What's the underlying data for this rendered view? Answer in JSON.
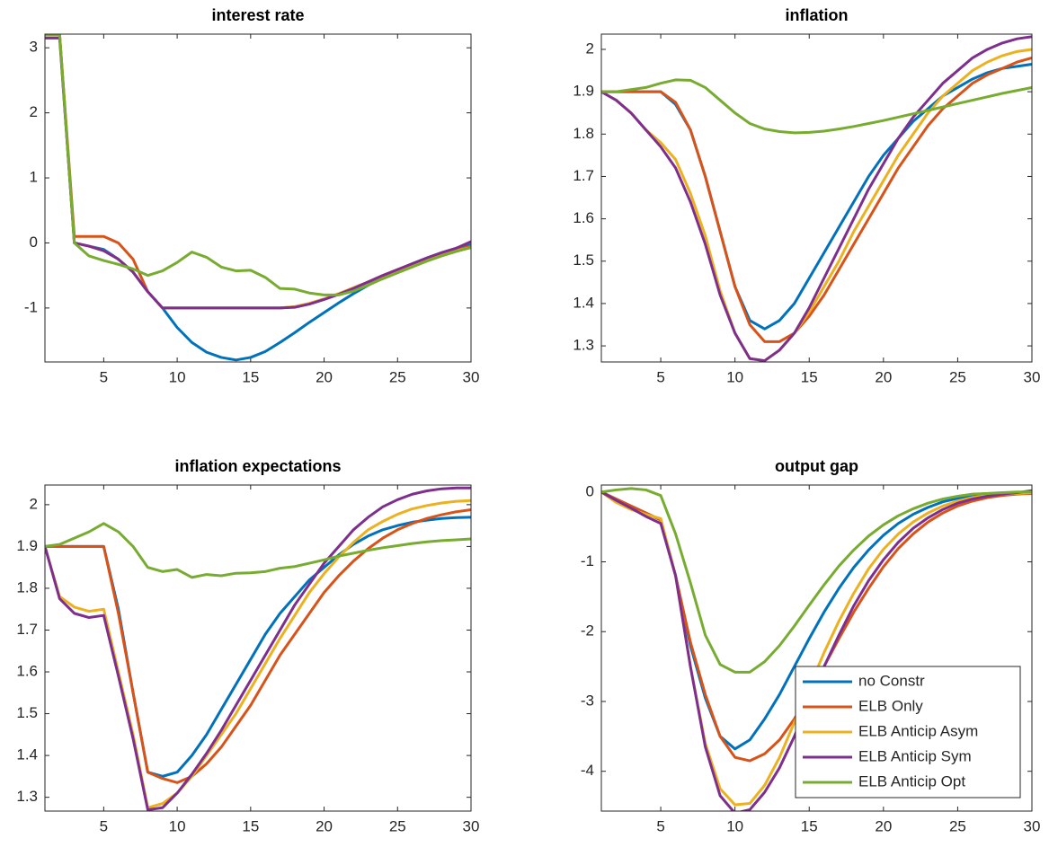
{
  "chart_data": [
    {
      "type": "line",
      "title": "interest rate",
      "x": [
        1,
        2,
        3,
        4,
        5,
        6,
        7,
        8,
        9,
        10,
        11,
        12,
        13,
        14,
        15,
        16,
        17,
        18,
        19,
        20,
        21,
        22,
        23,
        24,
        25,
        26,
        27,
        28,
        29,
        30
      ],
      "xlim": [
        1,
        30
      ],
      "xticks": [
        5,
        10,
        15,
        20,
        25,
        30
      ],
      "ylim": [
        -1.83,
        3.21
      ],
      "yticks": [
        -1,
        0,
        1,
        2,
        3
      ],
      "series": [
        {
          "color": "#0072BD",
          "values": [
            3.2,
            3.2,
            0.0,
            -0.05,
            -0.1,
            -0.25,
            -0.45,
            -0.75,
            -1.0,
            -1.3,
            -1.53,
            -1.68,
            -1.76,
            -1.8,
            -1.76,
            -1.67,
            -1.53,
            -1.38,
            -1.22,
            -1.07,
            -0.92,
            -0.78,
            -0.65,
            -0.53,
            -0.42,
            -0.32,
            -0.23,
            -0.15,
            -0.08,
            -0.03
          ]
        },
        {
          "color": "#D95319",
          "values": [
            3.2,
            3.2,
            0.1,
            0.1,
            0.1,
            0.0,
            -0.25,
            -0.75,
            -1.0,
            -1.0,
            -1.0,
            -1.0,
            -1.0,
            -1.0,
            -1.0,
            -1.0,
            -1.0,
            -0.98,
            -0.93,
            -0.86,
            -0.78,
            -0.69,
            -0.6,
            -0.5,
            -0.41,
            -0.32,
            -0.24,
            -0.17,
            -0.11,
            -0.05
          ]
        },
        {
          "color": "#EDB120",
          "values": [
            3.2,
            3.2,
            0.0,
            -0.05,
            -0.12,
            -0.25,
            -0.45,
            -0.75,
            -1.0,
            -1.0,
            -1.0,
            -1.0,
            -1.0,
            -1.0,
            -1.0,
            -1.0,
            -1.0,
            -0.98,
            -0.93,
            -0.86,
            -0.78,
            -0.69,
            -0.6,
            -0.51,
            -0.42,
            -0.33,
            -0.25,
            -0.18,
            -0.12,
            -0.07
          ]
        },
        {
          "color": "#7E2F8E",
          "values": [
            3.15,
            3.15,
            0.0,
            -0.05,
            -0.12,
            -0.25,
            -0.45,
            -0.75,
            -1.0,
            -1.0,
            -1.0,
            -1.0,
            -1.0,
            -1.0,
            -1.0,
            -1.0,
            -1.0,
            -0.99,
            -0.94,
            -0.87,
            -0.79,
            -0.7,
            -0.6,
            -0.5,
            -0.41,
            -0.32,
            -0.23,
            -0.15,
            -0.08,
            0.02
          ]
        },
        {
          "color": "#77AC30",
          "values": [
            3.2,
            3.2,
            0.0,
            -0.2,
            -0.27,
            -0.33,
            -0.4,
            -0.5,
            -0.43,
            -0.3,
            -0.14,
            -0.22,
            -0.37,
            -0.43,
            -0.42,
            -0.53,
            -0.7,
            -0.71,
            -0.77,
            -0.8,
            -0.8,
            -0.74,
            -0.65,
            -0.55,
            -0.46,
            -0.37,
            -0.28,
            -0.2,
            -0.13,
            -0.07
          ]
        }
      ]
    },
    {
      "type": "line",
      "title": "inflation",
      "x": [
        1,
        2,
        3,
        4,
        5,
        6,
        7,
        8,
        9,
        10,
        11,
        12,
        13,
        14,
        15,
        16,
        17,
        18,
        19,
        20,
        21,
        22,
        23,
        24,
        25,
        26,
        27,
        28,
        29,
        30
      ],
      "xlim": [
        1,
        30
      ],
      "xticks": [
        5,
        10,
        15,
        20,
        25,
        30
      ],
      "ylim": [
        1.262,
        2.036
      ],
      "yticks": [
        1.3,
        1.4,
        1.5,
        1.6,
        1.7,
        1.8,
        1.9,
        2
      ],
      "series": [
        {
          "color": "#0072BD",
          "values": [
            1.9,
            1.9,
            1.9,
            1.9,
            1.9,
            1.87,
            1.81,
            1.7,
            1.57,
            1.44,
            1.36,
            1.34,
            1.36,
            1.4,
            1.46,
            1.52,
            1.58,
            1.64,
            1.7,
            1.75,
            1.79,
            1.83,
            1.86,
            1.89,
            1.91,
            1.93,
            1.945,
            1.955,
            1.96,
            1.965
          ]
        },
        {
          "color": "#D95319",
          "values": [
            1.9,
            1.9,
            1.9,
            1.9,
            1.9,
            1.875,
            1.81,
            1.7,
            1.57,
            1.44,
            1.35,
            1.31,
            1.31,
            1.33,
            1.37,
            1.42,
            1.48,
            1.54,
            1.6,
            1.66,
            1.72,
            1.77,
            1.82,
            1.86,
            1.89,
            1.92,
            1.94,
            1.955,
            1.97,
            1.98
          ]
        },
        {
          "color": "#EDB120",
          "values": [
            1.9,
            1.88,
            1.85,
            1.81,
            1.78,
            1.74,
            1.66,
            1.56,
            1.43,
            1.33,
            1.27,
            1.265,
            1.29,
            1.33,
            1.38,
            1.44,
            1.5,
            1.57,
            1.63,
            1.69,
            1.75,
            1.8,
            1.85,
            1.89,
            1.92,
            1.95,
            1.97,
            1.985,
            1.995,
            2.0
          ]
        },
        {
          "color": "#7E2F8E",
          "values": [
            1.9,
            1.88,
            1.85,
            1.81,
            1.77,
            1.72,
            1.64,
            1.54,
            1.42,
            1.33,
            1.27,
            1.265,
            1.29,
            1.33,
            1.39,
            1.46,
            1.53,
            1.6,
            1.67,
            1.73,
            1.79,
            1.84,
            1.88,
            1.92,
            1.95,
            1.98,
            2.0,
            2.015,
            2.025,
            2.03
          ]
        },
        {
          "color": "#77AC30",
          "values": [
            1.9,
            1.9,
            1.905,
            1.91,
            1.92,
            1.928,
            1.927,
            1.91,
            1.88,
            1.85,
            1.825,
            1.812,
            1.806,
            1.803,
            1.804,
            1.807,
            1.812,
            1.818,
            1.825,
            1.832,
            1.84,
            1.848,
            1.856,
            1.864,
            1.872,
            1.88,
            1.888,
            1.896,
            1.903,
            1.91
          ]
        }
      ]
    },
    {
      "type": "line",
      "title": "inflation expectations",
      "x": [
        1,
        2,
        3,
        4,
        5,
        6,
        7,
        8,
        9,
        10,
        11,
        12,
        13,
        14,
        15,
        16,
        17,
        18,
        19,
        20,
        21,
        22,
        23,
        24,
        25,
        26,
        27,
        28,
        29,
        30
      ],
      "xlim": [
        1,
        30
      ],
      "xticks": [
        5,
        10,
        15,
        20,
        25,
        30
      ],
      "ylim": [
        1.267,
        2.047
      ],
      "yticks": [
        1.3,
        1.4,
        1.5,
        1.6,
        1.7,
        1.8,
        1.9,
        2
      ],
      "series": [
        {
          "color": "#0072BD",
          "values": [
            1.9,
            1.9,
            1.9,
            1.9,
            1.9,
            1.75,
            1.55,
            1.36,
            1.35,
            1.36,
            1.4,
            1.45,
            1.51,
            1.57,
            1.63,
            1.69,
            1.74,
            1.78,
            1.82,
            1.85,
            1.88,
            1.905,
            1.925,
            1.94,
            1.95,
            1.958,
            1.963,
            1.967,
            1.969,
            1.97
          ]
        },
        {
          "color": "#D95319",
          "values": [
            1.9,
            1.9,
            1.9,
            1.9,
            1.9,
            1.74,
            1.55,
            1.36,
            1.345,
            1.335,
            1.35,
            1.38,
            1.42,
            1.47,
            1.52,
            1.58,
            1.64,
            1.69,
            1.74,
            1.79,
            1.83,
            1.865,
            1.895,
            1.92,
            1.94,
            1.955,
            1.967,
            1.976,
            1.983,
            1.988
          ]
        },
        {
          "color": "#EDB120",
          "values": [
            1.9,
            1.78,
            1.755,
            1.745,
            1.75,
            1.6,
            1.45,
            1.275,
            1.285,
            1.31,
            1.35,
            1.4,
            1.45,
            1.5,
            1.56,
            1.62,
            1.68,
            1.735,
            1.79,
            1.835,
            1.875,
            1.91,
            1.94,
            1.96,
            1.977,
            1.99,
            1.998,
            2.004,
            2.008,
            2.01
          ]
        },
        {
          "color": "#7E2F8E",
          "values": [
            1.9,
            1.775,
            1.74,
            1.73,
            1.735,
            1.59,
            1.44,
            1.27,
            1.275,
            1.31,
            1.355,
            1.405,
            1.46,
            1.52,
            1.58,
            1.64,
            1.7,
            1.76,
            1.81,
            1.86,
            1.9,
            1.94,
            1.97,
            1.995,
            2.012,
            2.025,
            2.033,
            2.038,
            2.04,
            2.04
          ]
        },
        {
          "color": "#77AC30",
          "values": [
            1.9,
            1.905,
            1.92,
            1.935,
            1.955,
            1.935,
            1.9,
            1.85,
            1.84,
            1.845,
            1.826,
            1.833,
            1.83,
            1.836,
            1.837,
            1.84,
            1.848,
            1.852,
            1.86,
            1.868,
            1.877,
            1.884,
            1.891,
            1.897,
            1.902,
            1.907,
            1.911,
            1.914,
            1.916,
            1.918
          ]
        }
      ]
    },
    {
      "type": "line",
      "title": "output gap",
      "x": [
        1,
        2,
        3,
        4,
        5,
        6,
        7,
        8,
        9,
        10,
        11,
        12,
        13,
        14,
        15,
        16,
        17,
        18,
        19,
        20,
        21,
        22,
        23,
        24,
        25,
        26,
        27,
        28,
        29,
        30
      ],
      "xlim": [
        1,
        30
      ],
      "xticks": [
        5,
        10,
        15,
        20,
        25,
        30
      ],
      "ylim": [
        -4.57,
        0.1
      ],
      "yticks": [
        -4,
        -3,
        -2,
        -1,
        0
      ],
      "legend": "lower right",
      "series": [
        {
          "name": "no Constr",
          "color": "#0072BD",
          "values": [
            0,
            -0.1,
            -0.2,
            -0.3,
            -0.4,
            -1.2,
            -2.2,
            -2.95,
            -3.5,
            -3.68,
            -3.55,
            -3.25,
            -2.9,
            -2.5,
            -2.1,
            -1.72,
            -1.38,
            -1.08,
            -0.83,
            -0.62,
            -0.45,
            -0.32,
            -0.22,
            -0.14,
            -0.09,
            -0.05,
            -0.03,
            -0.02,
            -0.01,
            0
          ]
        },
        {
          "name": "ELB Only",
          "color": "#D95319",
          "values": [
            0,
            -0.1,
            -0.2,
            -0.3,
            -0.4,
            -1.2,
            -2.15,
            -2.9,
            -3.5,
            -3.8,
            -3.85,
            -3.75,
            -3.55,
            -3.25,
            -2.9,
            -2.5,
            -2.1,
            -1.72,
            -1.38,
            -1.07,
            -0.81,
            -0.6,
            -0.43,
            -0.3,
            -0.2,
            -0.13,
            -0.08,
            -0.05,
            -0.03,
            -0.02
          ]
        },
        {
          "name": "ELB Anticip Asym",
          "color": "#EDB120",
          "values": [
            0,
            -0.15,
            -0.25,
            -0.32,
            -0.38,
            -1.2,
            -2.5,
            -3.6,
            -4.25,
            -4.48,
            -4.46,
            -4.2,
            -3.8,
            -3.3,
            -2.8,
            -2.3,
            -1.85,
            -1.45,
            -1.1,
            -0.82,
            -0.6,
            -0.43,
            -0.3,
            -0.2,
            -0.13,
            -0.08,
            -0.05,
            -0.03,
            -0.02,
            -0.01
          ]
        },
        {
          "name": "ELB Anticip Sym",
          "color": "#7E2F8E",
          "values": [
            0,
            -0.12,
            -0.23,
            -0.35,
            -0.45,
            -1.2,
            -2.5,
            -3.65,
            -4.35,
            -4.6,
            -4.55,
            -4.3,
            -3.95,
            -3.5,
            -3.0,
            -2.5,
            -2.05,
            -1.63,
            -1.27,
            -0.97,
            -0.72,
            -0.52,
            -0.37,
            -0.25,
            -0.16,
            -0.1,
            -0.06,
            -0.03,
            -0.01,
            0.02
          ]
        },
        {
          "name": "ELB Anticip Opt",
          "color": "#77AC30",
          "values": [
            0,
            0.03,
            0.05,
            0.03,
            -0.05,
            -0.6,
            -1.3,
            -2.05,
            -2.47,
            -2.58,
            -2.58,
            -2.43,
            -2.2,
            -1.92,
            -1.62,
            -1.33,
            -1.06,
            -0.83,
            -0.63,
            -0.47,
            -0.34,
            -0.24,
            -0.16,
            -0.1,
            -0.06,
            -0.03,
            -0.02,
            -0.01,
            0,
            0
          ]
        }
      ]
    }
  ]
}
